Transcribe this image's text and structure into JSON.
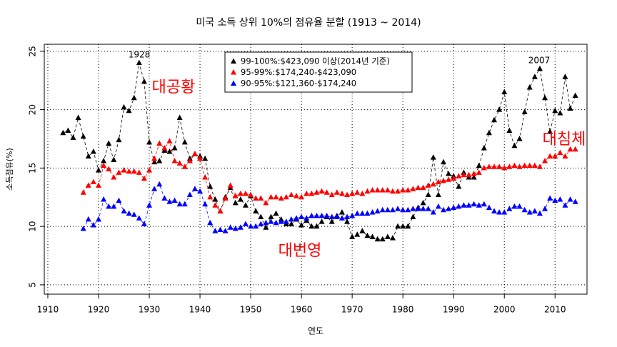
{
  "chart_data": {
    "type": "line",
    "title": "미국 소득 상위 10%의 점유율 분할 (1913 ~ 2014)",
    "x_label": "연도",
    "y_label": "소득점유(%)",
    "x": [
      1913,
      1914,
      1915,
      1916,
      1917,
      1918,
      1919,
      1920,
      1921,
      1922,
      1923,
      1924,
      1925,
      1926,
      1927,
      1928,
      1929,
      1930,
      1931,
      1932,
      1933,
      1934,
      1935,
      1936,
      1937,
      1938,
      1939,
      1940,
      1941,
      1942,
      1943,
      1944,
      1945,
      1946,
      1947,
      1948,
      1949,
      1950,
      1951,
      1952,
      1953,
      1954,
      1955,
      1956,
      1957,
      1958,
      1959,
      1960,
      1961,
      1962,
      1963,
      1964,
      1965,
      1966,
      1967,
      1968,
      1969,
      1970,
      1971,
      1972,
      1973,
      1974,
      1975,
      1976,
      1977,
      1978,
      1979,
      1980,
      1981,
      1982,
      1983,
      1984,
      1985,
      1986,
      1987,
      1988,
      1989,
      1990,
      1991,
      1992,
      1993,
      1994,
      1995,
      1996,
      1997,
      1998,
      1999,
      2000,
      2001,
      2002,
      2003,
      2004,
      2005,
      2006,
      2007,
      2008,
      2009,
      2010,
      2011,
      2012,
      2013,
      2014
    ],
    "series": [
      {
        "name": "99-100%:$423,090 이상(2014년 기준)",
        "color": "#000000",
        "values": [
          18.0,
          18.2,
          17.6,
          19.3,
          17.7,
          16.0,
          16.4,
          14.8,
          15.6,
          17.1,
          15.7,
          17.4,
          20.2,
          19.9,
          21.0,
          24.0,
          22.4,
          17.2,
          15.5,
          15.6,
          16.5,
          16.4,
          16.7,
          19.3,
          17.2,
          15.8,
          16.2,
          16.0,
          15.8,
          13.4,
          12.3,
          11.3,
          12.5,
          13.3,
          12.0,
          12.3,
          11.8,
          12.6,
          11.3,
          10.8,
          9.9,
          10.8,
          11.1,
          10.6,
          10.2,
          10.2,
          10.6,
          10.1,
          10.5,
          10.0,
          10.0,
          10.4,
          10.8,
          10.4,
          10.9,
          11.2,
          10.4,
          9.1,
          9.3,
          9.6,
          9.2,
          9.1,
          8.9,
          8.9,
          9.1,
          9.0,
          10.0,
          10.0,
          10.0,
          10.8,
          11.6,
          12.0,
          12.7,
          15.9,
          12.7,
          15.5,
          14.5,
          14.3,
          13.4,
          14.6,
          14.2,
          14.2,
          15.2,
          16.7,
          18.0,
          19.1,
          20.0,
          21.5,
          18.2,
          16.9,
          17.5,
          19.8,
          21.9,
          22.8,
          23.5,
          21.0,
          18.1,
          19.9,
          19.7,
          22.8,
          20.1,
          21.2
        ]
      },
      {
        "name": "95-99%:$174,240-$423,090",
        "color": "#ff0000",
        "values": [
          null,
          null,
          null,
          null,
          12.9,
          13.5,
          13.8,
          13.5,
          15.2,
          14.9,
          14.2,
          14.6,
          14.8,
          14.7,
          14.7,
          14.6,
          14.1,
          14.8,
          15.8,
          17.1,
          16.7,
          17.3,
          15.6,
          15.4,
          15.1,
          15.6,
          16.2,
          15.8,
          14.2,
          12.5,
          11.8,
          11.3,
          12.4,
          13.5,
          12.6,
          12.8,
          12.8,
          12.7,
          12.4,
          12.4,
          12.0,
          12.5,
          12.5,
          12.4,
          12.5,
          12.7,
          12.6,
          12.5,
          12.8,
          12.8,
          12.9,
          13.0,
          12.9,
          12.7,
          12.9,
          12.8,
          12.7,
          12.8,
          12.9,
          12.8,
          13.0,
          13.1,
          13.1,
          13.1,
          13.1,
          13.0,
          13.0,
          13.1,
          13.1,
          13.2,
          13.3,
          13.3,
          13.5,
          13.6,
          13.8,
          13.9,
          14.0,
          14.1,
          14.3,
          14.4,
          14.4,
          14.5,
          14.6,
          15.0,
          15.1,
          15.1,
          15.1,
          15.0,
          15.1,
          15.2,
          15.1,
          15.2,
          15.2,
          15.2,
          15.1,
          15.6,
          16.0,
          16.0,
          16.3,
          16.0,
          16.6,
          16.6
        ]
      },
      {
        "name": "90-95%:$121,360-$174,240",
        "color": "#0000ff",
        "values": [
          null,
          null,
          null,
          null,
          9.8,
          10.6,
          10.1,
          10.6,
          12.3,
          11.7,
          11.7,
          12.2,
          11.3,
          11.1,
          11.0,
          10.7,
          10.2,
          11.8,
          13.2,
          13.6,
          12.4,
          12.1,
          12.2,
          11.9,
          11.9,
          12.7,
          13.2,
          13.0,
          11.9,
          10.3,
          9.6,
          9.7,
          9.6,
          9.9,
          9.8,
          9.9,
          10.2,
          10.0,
          10.0,
          10.2,
          10.3,
          10.4,
          10.3,
          10.4,
          10.4,
          10.6,
          10.7,
          10.8,
          10.7,
          10.9,
          10.9,
          10.9,
          10.9,
          10.8,
          10.8,
          10.7,
          10.8,
          10.9,
          11.1,
          11.1,
          11.1,
          11.2,
          11.3,
          11.4,
          11.4,
          11.4,
          11.5,
          11.4,
          11.4,
          11.5,
          11.5,
          11.5,
          11.5,
          11.2,
          11.7,
          11.4,
          11.5,
          11.6,
          11.7,
          11.8,
          11.8,
          11.9,
          11.8,
          11.9,
          11.6,
          11.3,
          11.2,
          11.2,
          11.5,
          11.7,
          11.7,
          11.4,
          11.2,
          11.3,
          11.1,
          11.5,
          12.4,
          12.2,
          12.3,
          11.8,
          12.3,
          12.1
        ]
      }
    ],
    "xlim": [
      1909.3,
      2016.3
    ],
    "ylim": [
      4.2,
      25.6
    ],
    "xticks": [
      1910,
      1920,
      1930,
      1940,
      1950,
      1960,
      1970,
      1980,
      1990,
      2000,
      2010
    ],
    "yticks": [
      5,
      10,
      15,
      20,
      25
    ],
    "grid": true,
    "legend": "top",
    "annotations": [
      "1928",
      "2007",
      "대공황",
      "대번영",
      "대침체"
    ]
  }
}
